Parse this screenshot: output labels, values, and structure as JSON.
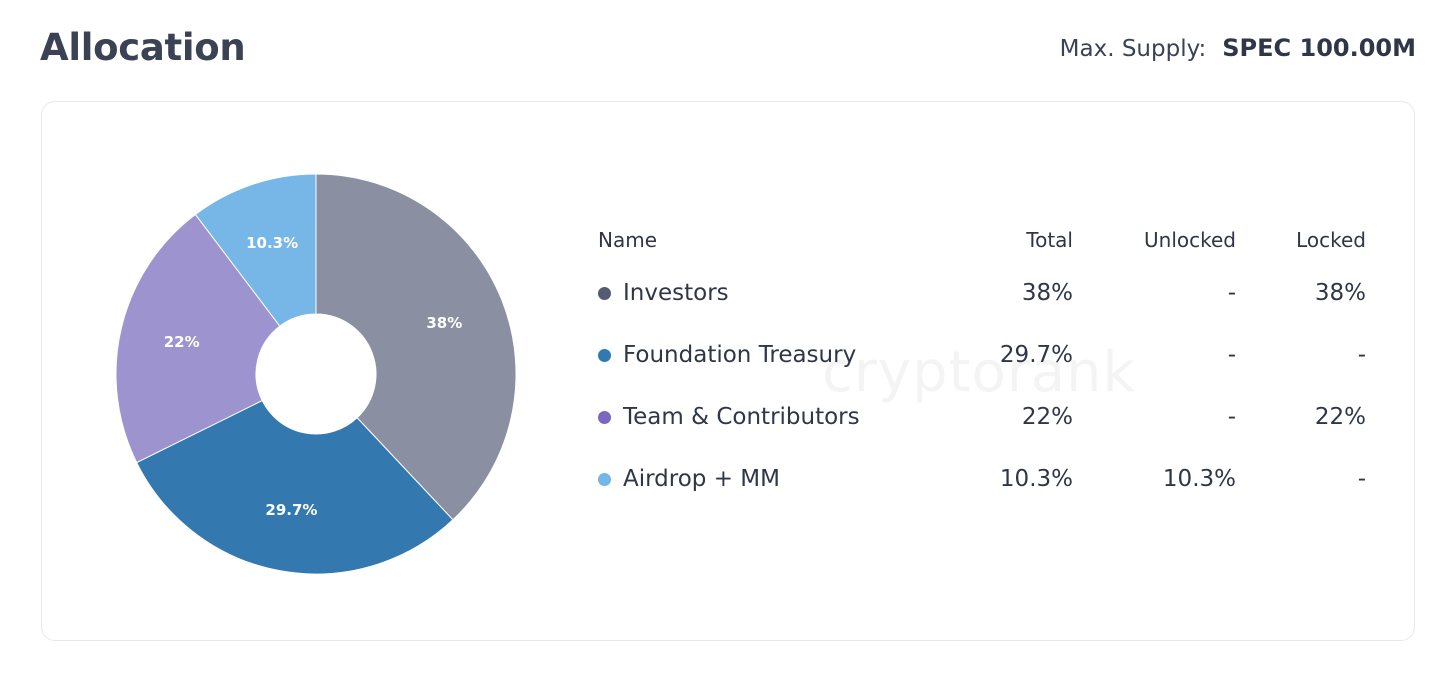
{
  "header": {
    "title": "Allocation",
    "supply_label": "Max. Supply:",
    "supply_value": "SPEC 100.00M"
  },
  "watermark": "cryptorank",
  "table": {
    "columns": [
      "Name",
      "Total",
      "Unlocked",
      "Locked"
    ],
    "rows": [
      {
        "name": "Investors",
        "total": "38%",
        "unlocked": "-",
        "locked": "38%",
        "color": "#545b73"
      },
      {
        "name": "Foundation Treasury",
        "total": "29.7%",
        "unlocked": "-",
        "locked": "-",
        "color": "#3279b0"
      },
      {
        "name": "Team & Contributors",
        "total": "22%",
        "unlocked": "-",
        "locked": "22%",
        "color": "#7a67c0"
      },
      {
        "name": "Airdrop + MM",
        "total": "10.3%",
        "unlocked": "10.3%",
        "locked": "-",
        "color": "#74b6e7"
      }
    ]
  },
  "chart_data": {
    "type": "pie",
    "categories": [
      "Investors",
      "Foundation Treasury",
      "Team & Contributors",
      "Airdrop + MM"
    ],
    "values": [
      38,
      29.7,
      22,
      10.3
    ],
    "slice_labels": [
      "38%",
      "29.7%",
      "22%",
      "10.3%"
    ],
    "colors": [
      "#8a8fa2",
      "#3379b0",
      "#9d94cf",
      "#77b7e8"
    ],
    "donut": true,
    "start": "top",
    "direction": "clockwise"
  }
}
